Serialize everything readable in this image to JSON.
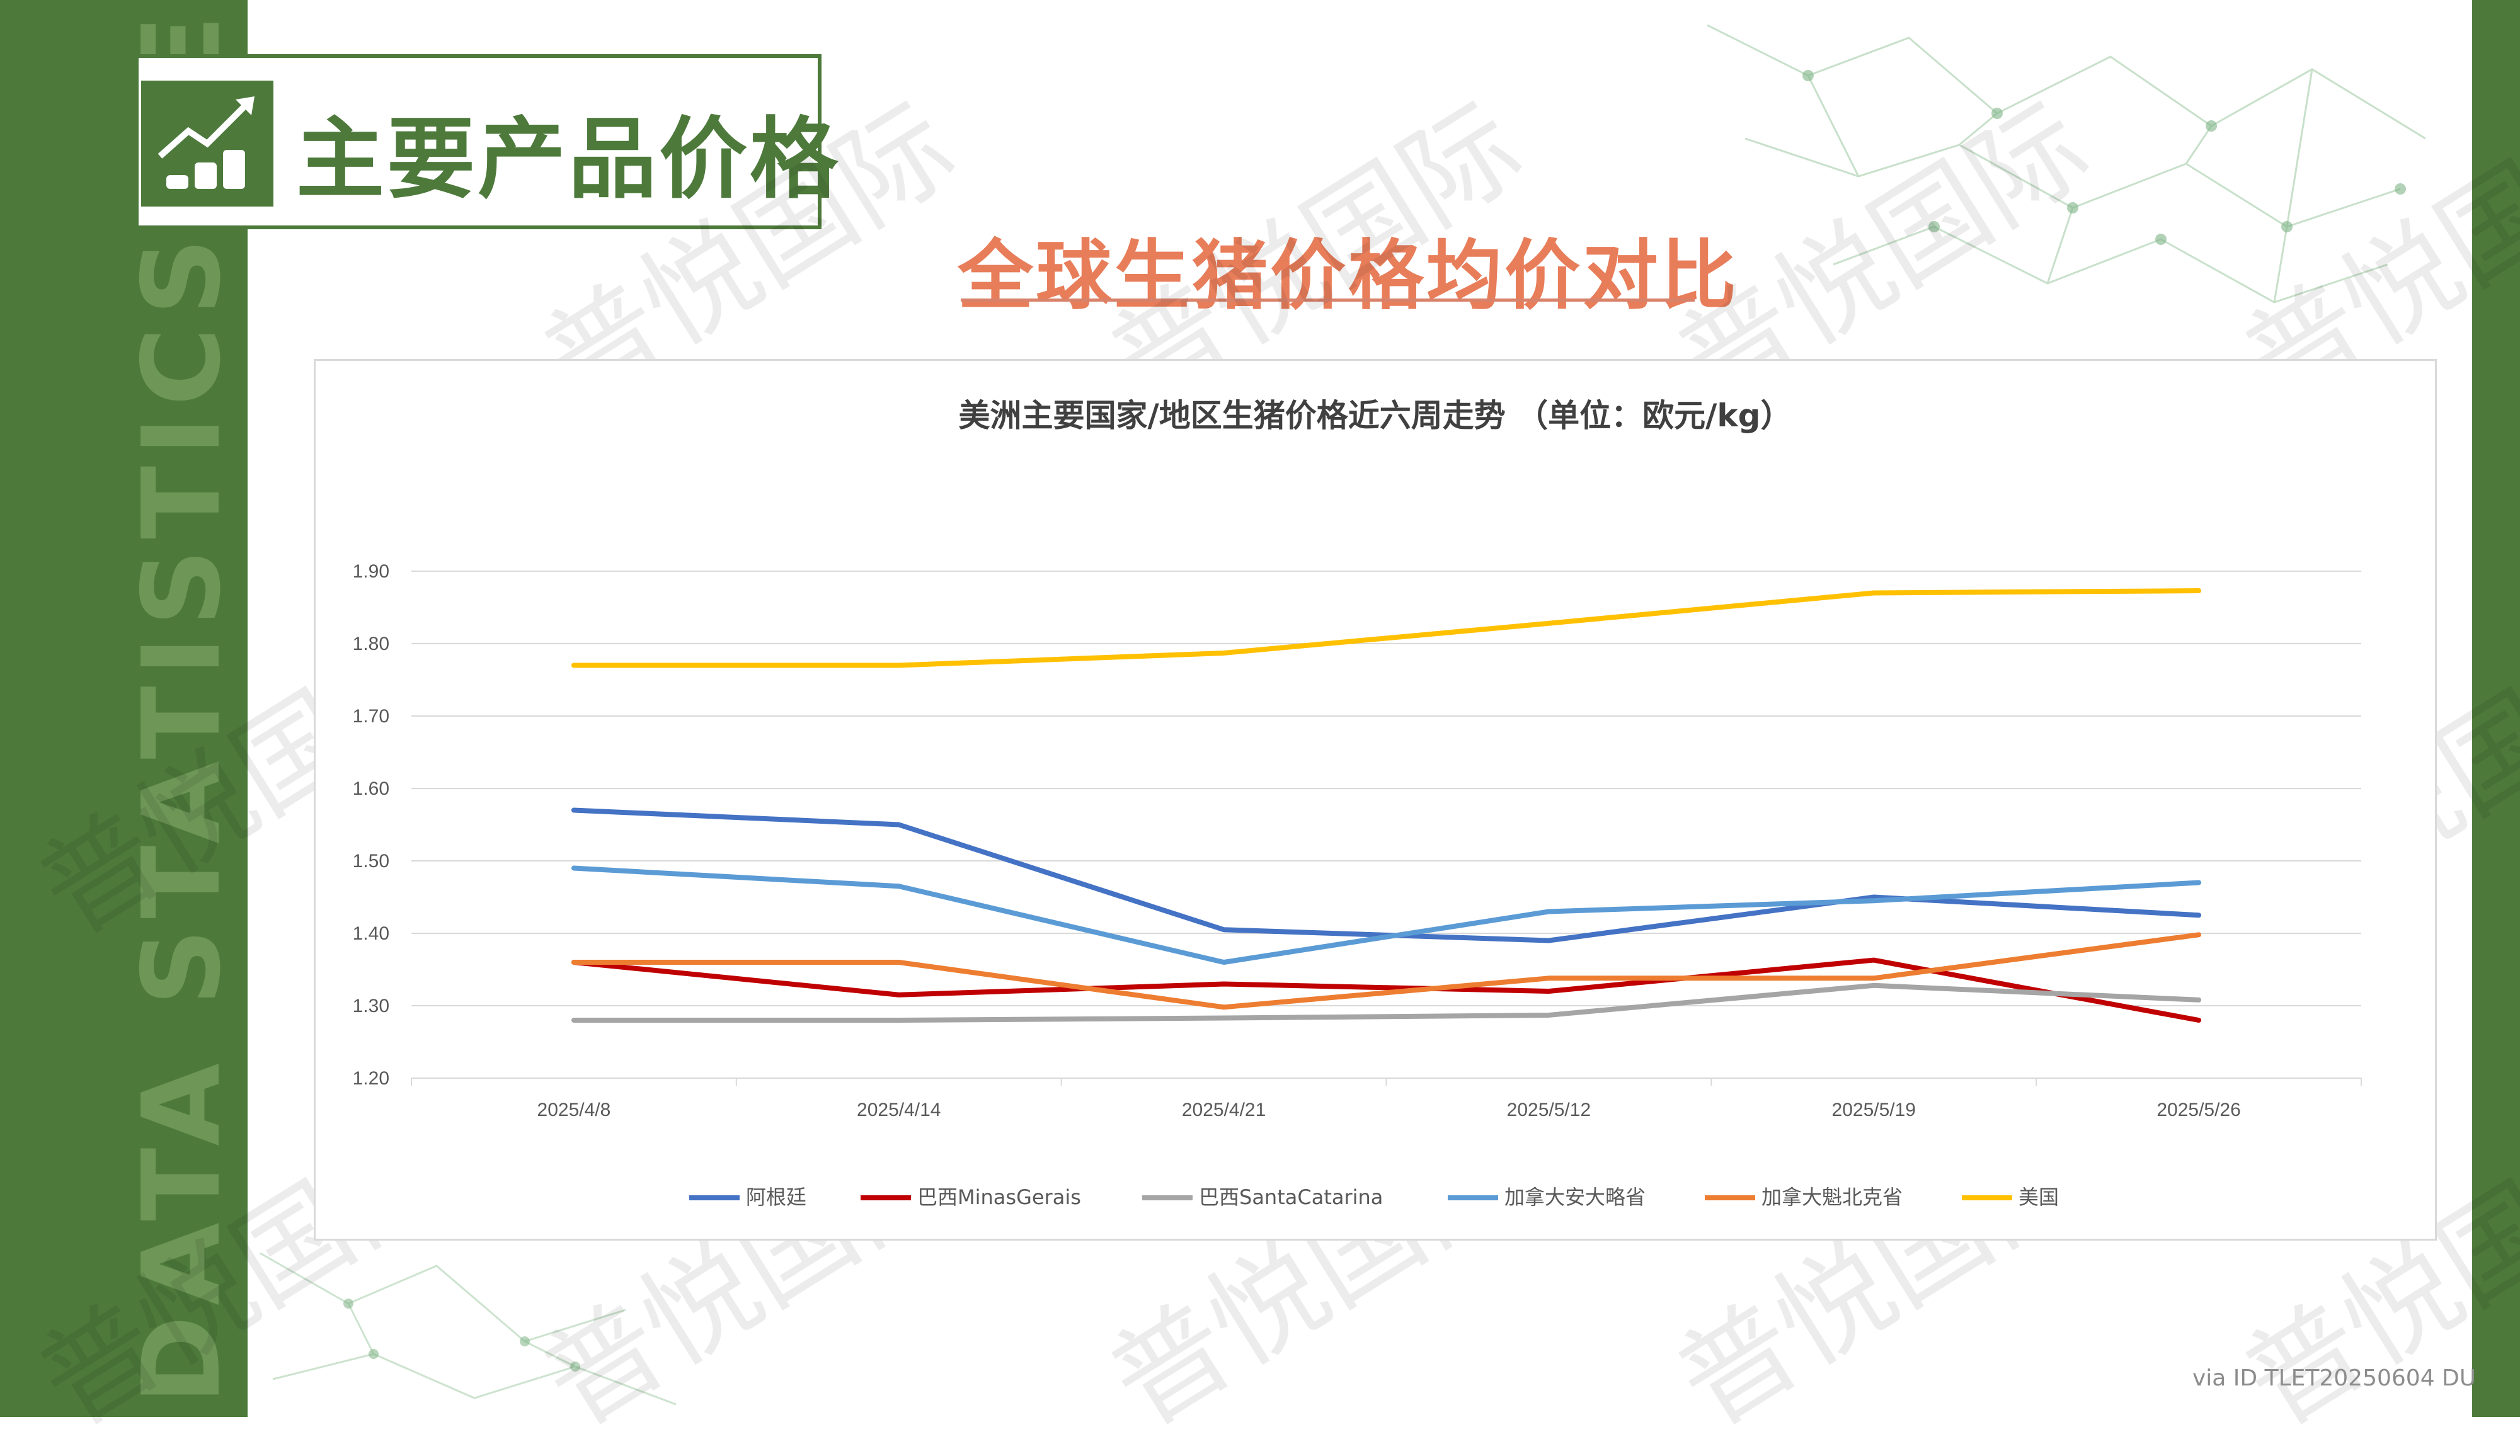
{
  "side_banner": "DATA STATISTICS REPORT",
  "header": {
    "title": "主要产品价格"
  },
  "subtitle": "全球生猪价格均价对比",
  "watermark": "普悦国际",
  "source_note": "via ID TLET20250604 DU",
  "colors": {
    "brand_green": "#4d7a3b",
    "subtitle": "#e87d5a"
  },
  "icons": {
    "title_icon": "growth-chart-coins-icon"
  },
  "chart_data": {
    "type": "line",
    "title": "美洲主要国家/地区生猪价格近六周走势 （单位：欧元/kg）",
    "xlabel": "",
    "ylabel": "",
    "categories": [
      "2025/4/8",
      "2025/4/14",
      "2025/4/21",
      "2025/5/12",
      "2025/5/19",
      "2025/5/26"
    ],
    "ylim": [
      1.2,
      1.9
    ],
    "yticks": [
      "1.20",
      "1.30",
      "1.40",
      "1.50",
      "1.60",
      "1.70",
      "1.80",
      "1.90"
    ],
    "grid": true,
    "legend_position": "bottom",
    "series": [
      {
        "name": "阿根廷",
        "color": "#4472c4",
        "values": [
          1.57,
          1.55,
          1.405,
          1.39,
          1.45,
          1.425
        ]
      },
      {
        "name": "巴西MinasGerais",
        "color": "#c00000",
        "values": [
          1.36,
          1.315,
          1.33,
          1.32,
          1.363,
          1.28
        ]
      },
      {
        "name": "巴西SantaCatarina",
        "color": "#a5a5a5",
        "values": [
          1.28,
          1.28,
          1.283,
          1.287,
          1.328,
          1.308
        ]
      },
      {
        "name": "加拿大安大略省",
        "color": "#5b9bd5",
        "values": [
          1.49,
          1.465,
          1.36,
          1.43,
          1.445,
          1.47
        ]
      },
      {
        "name": "加拿大魁北克省",
        "color": "#ed7d31",
        "values": [
          1.36,
          1.36,
          1.298,
          1.338,
          1.338,
          1.398
        ]
      },
      {
        "name": "美国",
        "color": "#ffc000",
        "values": [
          1.77,
          1.77,
          1.787,
          1.828,
          1.87,
          1.873
        ]
      }
    ]
  }
}
